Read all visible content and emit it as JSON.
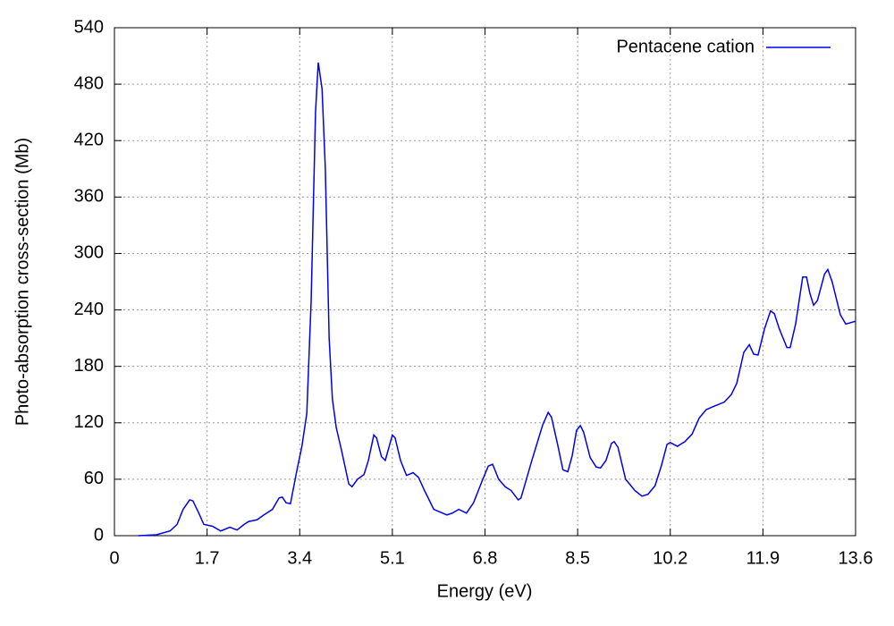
{
  "chart_data": {
    "type": "line",
    "xlabel": "Energy (eV)",
    "ylabel": "Photo-absorption cross-section (Mb)",
    "xlim": [
      0,
      13.6
    ],
    "xticks": [
      0,
      1.7,
      3.4,
      5.1,
      6.8,
      8.5,
      10.2,
      11.9,
      13.6
    ],
    "ylim": [
      0,
      540
    ],
    "yticks": [
      0,
      60,
      120,
      180,
      240,
      300,
      360,
      420,
      480,
      540
    ],
    "grid": true,
    "legend": "top-right",
    "series": [
      {
        "name": "Pentacene cation",
        "color": "#0000ee",
        "x": [
          0.44,
          0.77,
          1.02,
          1.15,
          1.26,
          1.38,
          1.44,
          1.54,
          1.64,
          1.8,
          1.95,
          2.12,
          2.25,
          2.38,
          2.46,
          2.62,
          2.74,
          2.82,
          2.9,
          3.02,
          3.08,
          3.15,
          3.23,
          3.35,
          3.44,
          3.53,
          3.61,
          3.69,
          3.74,
          3.81,
          3.87,
          3.94,
          4.0,
          4.07,
          4.17,
          4.3,
          4.36,
          4.46,
          4.58,
          4.66,
          4.76,
          4.81,
          4.9,
          4.97,
          5.1,
          5.15,
          5.25,
          5.36,
          5.48,
          5.58,
          5.69,
          5.86,
          6.1,
          6.2,
          6.32,
          6.46,
          6.59,
          6.76,
          6.86,
          6.94,
          7.05,
          7.17,
          7.28,
          7.41,
          7.46,
          7.66,
          7.86,
          7.96,
          8.02,
          8.14,
          8.23,
          8.32,
          8.4,
          8.48,
          8.55,
          8.61,
          8.73,
          8.84,
          8.92,
          9.02,
          9.12,
          9.17,
          9.24,
          9.38,
          9.55,
          9.68,
          9.79,
          9.92,
          10.04,
          10.14,
          10.2,
          10.33,
          10.47,
          10.6,
          10.73,
          10.86,
          11.02,
          11.19,
          11.32,
          11.42,
          11.55,
          11.65,
          11.73,
          11.81,
          11.93,
          12.04,
          12.11,
          12.2,
          12.34,
          12.4,
          12.5,
          12.63,
          12.7,
          12.76,
          12.83,
          12.9,
          13.03,
          13.09,
          13.17,
          13.32,
          13.42,
          13.6
        ],
        "values": [
          0,
          1,
          5,
          12,
          28,
          38,
          37,
          25,
          12,
          10,
          5,
          9,
          6,
          12,
          15,
          17,
          22,
          25,
          28,
          40,
          41,
          35,
          34,
          70,
          95,
          130,
          250,
          450,
          503,
          475,
          390,
          210,
          145,
          115,
          90,
          55,
          52,
          60,
          65,
          80,
          107,
          104,
          84,
          80,
          107,
          104,
          80,
          64,
          67,
          62,
          48,
          28,
          22,
          24,
          28,
          24,
          35,
          60,
          74,
          76,
          60,
          52,
          48,
          38,
          40,
          80,
          118,
          131,
          126,
          95,
          70,
          68,
          85,
          112,
          117,
          110,
          83,
          73,
          72,
          80,
          98,
          100,
          94,
          60,
          48,
          42,
          44,
          53,
          75,
          97,
          99,
          95,
          100,
          108,
          125,
          134,
          138,
          142,
          150,
          162,
          195,
          203,
          193,
          192,
          220,
          239,
          236,
          220,
          200,
          200,
          225,
          275,
          275,
          258,
          245,
          250,
          278,
          283,
          270,
          235,
          225,
          228
        ]
      }
    ]
  }
}
